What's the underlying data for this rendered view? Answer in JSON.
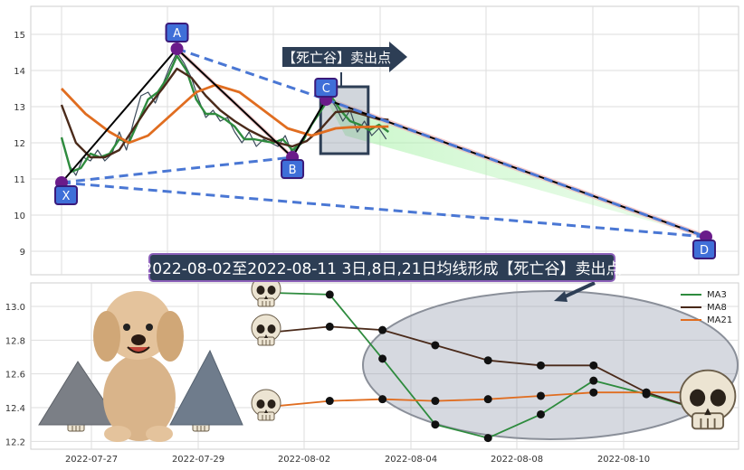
{
  "chart_data": [
    {
      "type": "line",
      "panel": "price",
      "ylim": [
        8.7,
        15.6
      ],
      "yticks": [
        "15",
        "14",
        "13",
        "12",
        "11",
        "10",
        "9"
      ],
      "grid": true,
      "x_domain": [
        0,
        13.7
      ],
      "series": [
        {
          "color": "#3a4a5a",
          "points": [
            [
              0.0,
              12.1
            ],
            [
              0.15,
              11.4
            ],
            [
              0.3,
              11.1
            ],
            [
              0.45,
              11.6
            ],
            [
              0.6,
              11.5
            ],
            [
              0.75,
              11.8
            ],
            [
              0.9,
              11.5
            ],
            [
              1.05,
              11.7
            ],
            [
              1.2,
              12.3
            ],
            [
              1.35,
              11.8
            ],
            [
              1.5,
              12.6
            ],
            [
              1.65,
              13.3
            ],
            [
              1.8,
              13.4
            ],
            [
              1.95,
              13.1
            ],
            [
              2.1,
              13.6
            ],
            [
              2.25,
              14.1
            ],
            [
              2.4,
              14.5
            ],
            [
              2.55,
              14.2
            ],
            [
              2.7,
              13.8
            ],
            [
              2.85,
              13.2
            ],
            [
              3.0,
              12.7
            ],
            [
              3.15,
              12.9
            ],
            [
              3.3,
              12.6
            ],
            [
              3.45,
              12.7
            ],
            [
              3.6,
              12.3
            ],
            [
              3.75,
              12.0
            ],
            [
              3.9,
              12.3
            ],
            [
              4.05,
              11.9
            ],
            [
              4.2,
              12.1
            ],
            [
              4.35,
              12.0
            ],
            [
              4.5,
              11.9
            ],
            [
              4.65,
              12.2
            ],
            [
              4.8,
              11.7
            ],
            [
              4.95,
              12.0
            ],
            [
              5.1,
              12.3
            ],
            [
              5.25,
              12.6
            ],
            [
              5.4,
              12.9
            ],
            [
              5.55,
              13.3
            ],
            [
              5.7,
              13.0
            ],
            [
              5.85,
              12.6
            ],
            [
              6.0,
              12.9
            ],
            [
              6.15,
              12.3
            ],
            [
              6.3,
              12.6
            ],
            [
              6.45,
              12.2
            ],
            [
              6.6,
              12.4
            ],
            [
              6.75,
              12.1
            ]
          ]
        },
        {
          "name": "MA3",
          "color": "#2e8b3e",
          "points": [
            [
              0.0,
              12.15
            ],
            [
              0.2,
              11.2
            ],
            [
              0.4,
              11.3
            ],
            [
              0.6,
              11.7
            ],
            [
              0.8,
              11.6
            ],
            [
              1.0,
              11.7
            ],
            [
              1.2,
              12.1
            ],
            [
              1.4,
              12.0
            ],
            [
              1.6,
              12.6
            ],
            [
              1.8,
              13.2
            ],
            [
              2.0,
              13.4
            ],
            [
              2.2,
              13.8
            ],
            [
              2.4,
              14.4
            ],
            [
              2.6,
              14.0
            ],
            [
              2.8,
              13.2
            ],
            [
              3.0,
              12.8
            ],
            [
              3.2,
              12.8
            ],
            [
              3.4,
              12.65
            ],
            [
              3.6,
              12.45
            ],
            [
              3.8,
              12.1
            ],
            [
              4.0,
              12.1
            ],
            [
              4.2,
              12.05
            ],
            [
              4.4,
              12.0
            ],
            [
              4.6,
              12.1
            ],
            [
              4.8,
              11.8
            ],
            [
              5.0,
              12.0
            ],
            [
              5.2,
              12.5
            ],
            [
              5.4,
              12.9
            ],
            [
              5.6,
              13.3
            ],
            [
              5.8,
              12.9
            ],
            [
              6.0,
              12.6
            ],
            [
              6.2,
              12.5
            ],
            [
              6.4,
              12.35
            ],
            [
              6.6,
              12.5
            ],
            [
              6.8,
              12.3
            ]
          ]
        },
        {
          "name": "MA8",
          "color": "#4a2a1a",
          "points": [
            [
              0.0,
              13.05
            ],
            [
              0.3,
              12.0
            ],
            [
              0.6,
              11.6
            ],
            [
              0.9,
              11.6
            ],
            [
              1.2,
              11.8
            ],
            [
              1.5,
              12.4
            ],
            [
              1.8,
              13.0
            ],
            [
              2.1,
              13.5
            ],
            [
              2.4,
              14.05
            ],
            [
              2.7,
              13.8
            ],
            [
              3.0,
              13.3
            ],
            [
              3.3,
              12.9
            ],
            [
              3.6,
              12.6
            ],
            [
              3.9,
              12.35
            ],
            [
              4.2,
              12.15
            ],
            [
              4.5,
              12.0
            ],
            [
              4.8,
              11.9
            ],
            [
              5.1,
              12.05
            ],
            [
              5.4,
              12.4
            ],
            [
              5.7,
              12.85
            ],
            [
              6.0,
              12.88
            ],
            [
              6.3,
              12.77
            ],
            [
              6.6,
              12.65
            ],
            [
              6.8,
              12.64
            ]
          ]
        },
        {
          "name": "MA21",
          "color": "#e06d20",
          "points": [
            [
              0.0,
              13.5
            ],
            [
              0.5,
              12.8
            ],
            [
              1.0,
              12.3
            ],
            [
              1.4,
              12.0
            ],
            [
              1.8,
              12.2
            ],
            [
              2.3,
              12.8
            ],
            [
              2.8,
              13.4
            ],
            [
              3.2,
              13.6
            ],
            [
              3.7,
              13.4
            ],
            [
              4.2,
              12.9
            ],
            [
              4.7,
              12.4
            ],
            [
              5.2,
              12.2
            ],
            [
              5.7,
              12.4
            ],
            [
              6.0,
              12.43
            ],
            [
              6.4,
              12.44
            ],
            [
              6.8,
              12.45
            ]
          ]
        }
      ],
      "zigzag": [
        [
          0.0,
          10.9
        ],
        [
          2.4,
          14.6
        ],
        [
          4.8,
          11.6
        ],
        [
          5.5,
          13.2
        ],
        [
          13.4,
          9.4
        ]
      ],
      "pattern_lines": [
        {
          "from": [
            0.0,
            10.9
          ],
          "to": [
            13.4,
            9.4
          ]
        },
        {
          "from": [
            0.0,
            10.9
          ],
          "to": [
            4.8,
            11.6
          ]
        },
        {
          "from": [
            2.4,
            14.6
          ],
          "to": [
            5.5,
            13.2
          ]
        },
        {
          "from": [
            5.5,
            13.2
          ],
          "to": [
            13.4,
            9.4
          ]
        }
      ],
      "points": [
        {
          "label": "X",
          "x": 0.0,
          "y": 10.9
        },
        {
          "label": "A",
          "x": 2.4,
          "y": 14.6
        },
        {
          "label": "B",
          "x": 4.8,
          "y": 11.6
        },
        {
          "label": "C",
          "x": 5.5,
          "y": 13.2
        },
        {
          "label": "D",
          "x": 13.4,
          "y": 9.4
        }
      ],
      "highlight_box": {
        "x": [
          5.5,
          6.0
        ],
        "y": [
          11.7,
          13.2
        ]
      },
      "callout": "【死亡谷】卖出点"
    },
    {
      "type": "line",
      "panel": "ma",
      "ylim": [
        12.16,
        13.12
      ],
      "yticks": [
        "13.0",
        "12.8",
        "12.6",
        "12.4",
        "12.2"
      ],
      "xticks": [
        "2022-07-27",
        "2022-07-29",
        "2022-08-02",
        "2022-08-04",
        "2022-08-08",
        "2022-08-10"
      ],
      "grid": true,
      "series": [
        {
          "name": "MA3",
          "color": "#2e8b3e",
          "values": [
            13.08,
            13.07,
            12.69,
            12.3,
            12.22,
            12.36,
            12.56,
            12.48,
            12.39
          ]
        },
        {
          "name": "MA8",
          "color": "#4a2a1a",
          "values": [
            12.85,
            12.88,
            12.86,
            12.77,
            12.68,
            12.65,
            12.65,
            12.49,
            12.39
          ]
        },
        {
          "name": "MA21",
          "color": "#e06d20",
          "values": [
            12.41,
            12.44,
            12.45,
            12.44,
            12.45,
            12.47,
            12.49,
            12.49,
            12.49
          ]
        }
      ],
      "legend": {
        "position": "top-right",
        "entries": [
          "MA3",
          "MA8",
          "MA21"
        ]
      },
      "title_banner": "2022-08-02至2022-08-11 3日,8日,21日均线形成【死亡谷】卖出点"
    }
  ]
}
